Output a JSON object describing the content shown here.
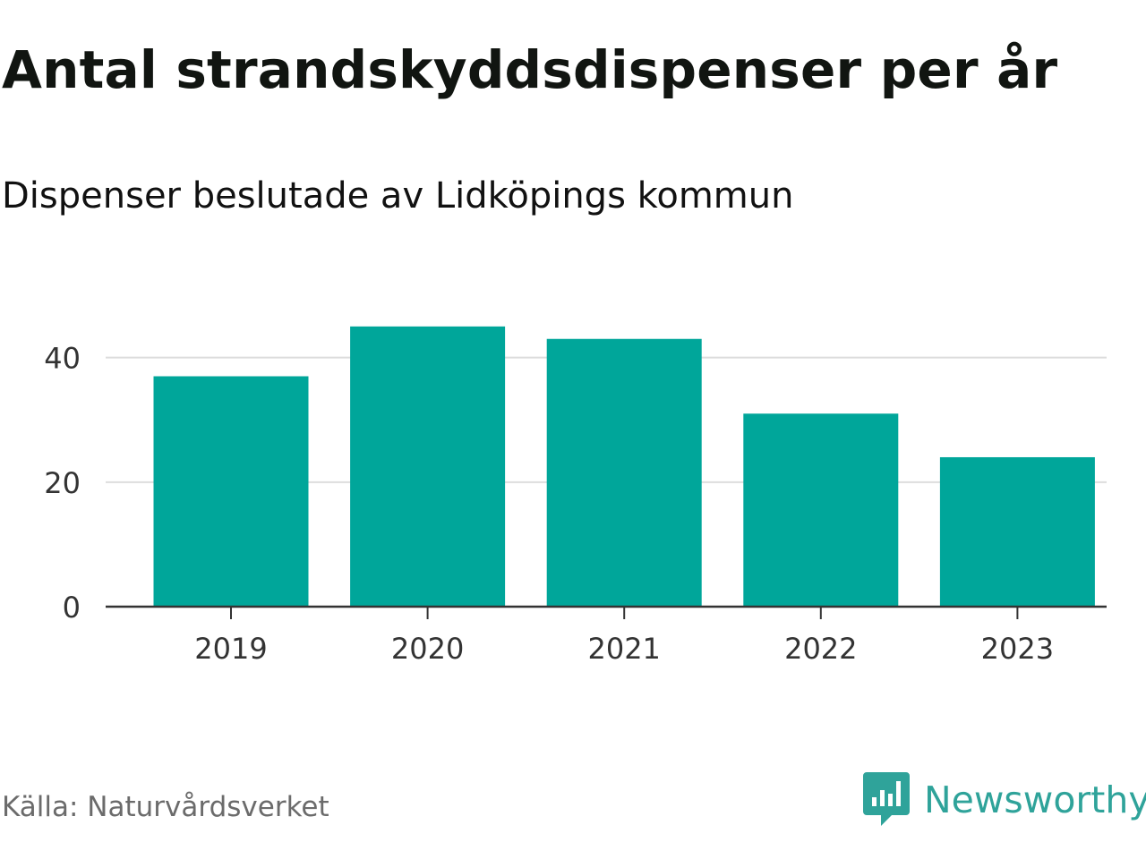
{
  "chart_data": {
    "type": "bar",
    "title": "Antal strandskyddsdispenser per år",
    "subtitle": "Dispenser beslutade av Lidköpings kommun",
    "categories": [
      "2019",
      "2020",
      "2021",
      "2022",
      "2023"
    ],
    "values": [
      37,
      45,
      43,
      31,
      24
    ],
    "xlabel": "",
    "ylabel": "",
    "ylim": [
      0,
      49
    ],
    "yticks": [
      "0",
      "20",
      "40"
    ],
    "grid": true,
    "bar_color": "#00a69a"
  },
  "footer": {
    "source": "Källa: Naturvårdsverket",
    "brand": "Newsworthy"
  },
  "colors": {
    "bar": "#00a69a",
    "brand": "#2fa39a",
    "grid": "#dddddd",
    "axis": "#333333"
  }
}
